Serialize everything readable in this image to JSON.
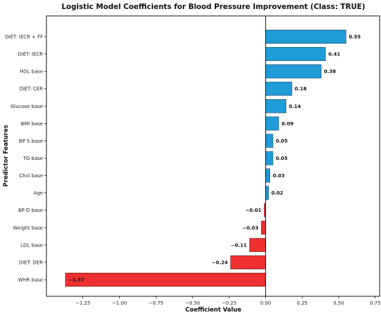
{
  "chart_data": {
    "type": "bar",
    "orientation": "horizontal",
    "title": "Logistic Model Coefficients for Blood Pressure Improvement (Class: TRUE)",
    "xlabel": "Coefficient Value",
    "ylabel": "Predictor Features",
    "xlim": [
      -1.5,
      0.78
    ],
    "xticks": [
      -1.25,
      -1.0,
      -0.75,
      -0.5,
      -0.25,
      0.0,
      0.25,
      0.5,
      0.75
    ],
    "xtick_labels": [
      "−1.25",
      "−1.00",
      "−0.75",
      "−0.50",
      "−0.25",
      "0.00",
      "0.25",
      "0.50",
      "0.75"
    ],
    "grid": false,
    "positive_color": "#1f9bd7",
    "negative_color": "#f03030",
    "categories": [
      "DIET: IECR + FF",
      "DIET: IECR",
      "HDL base",
      "DIET: CER",
      "Glucose base",
      "BMI base",
      "BP S base",
      "TG base",
      "Chol base",
      "Age",
      "BP D base",
      "Weight base",
      "LDL base",
      "DIET: DER",
      "WHR base"
    ],
    "values": [
      0.55,
      0.41,
      0.38,
      0.18,
      0.14,
      0.09,
      0.05,
      0.05,
      0.03,
      0.02,
      -0.01,
      -0.03,
      -0.11,
      -0.24,
      -1.37
    ],
    "value_labels": [
      "0.55",
      "0.41",
      "0.38",
      "0.18",
      "0.14",
      "0.09",
      "0.05",
      "0.05",
      "0.03",
      "0.02",
      "−0.01",
      "−0.03",
      "−0.11",
      "−0.24",
      "−1.37"
    ]
  }
}
